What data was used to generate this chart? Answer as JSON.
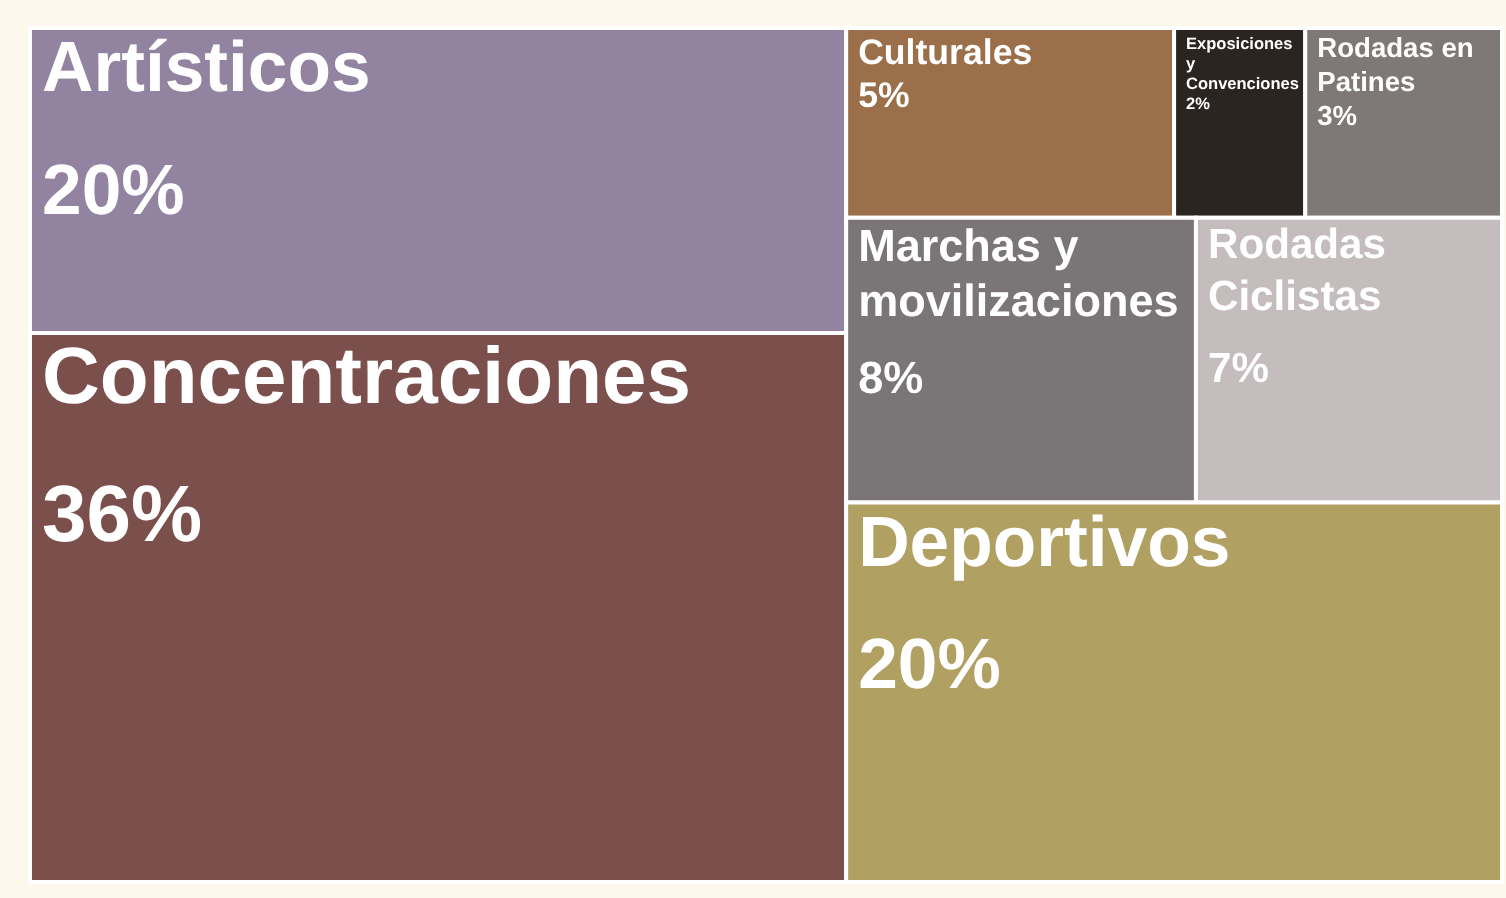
{
  "chart_data": {
    "type": "other",
    "categories": [
      "Artísticos",
      "Concentraciones",
      "Culturales",
      "Exposiciones y Convenciones",
      "Rodadas en Patines",
      "Marchas y movilizaciones",
      "Rodadas Ciclistas",
      "Deportivos"
    ],
    "values": [
      20,
      36,
      5,
      2,
      3,
      8,
      7,
      20
    ],
    "value_labels": [
      "20%",
      "36%",
      "5%",
      "2%",
      "3%",
      "8%",
      "7%",
      "20%"
    ],
    "colors": [
      "#9283a0",
      "#7b4f4c",
      "#9a6f4a",
      "#2b2522",
      "#7e7976",
      "#7a7577",
      "#c5bdbd",
      "#b0a062"
    ]
  }
}
